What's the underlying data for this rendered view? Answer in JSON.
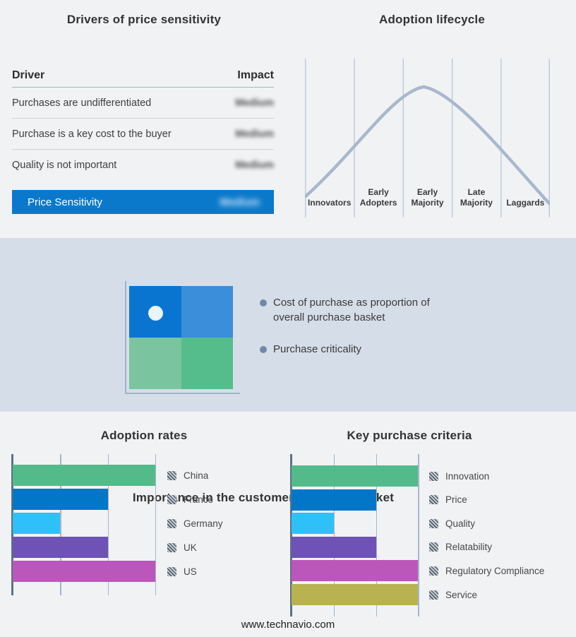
{
  "drivers_panel": {
    "title": "Drivers of price sensitivity",
    "columns": {
      "driver": "Driver",
      "impact": "Impact"
    },
    "rows": [
      {
        "driver": "Purchases are undifferentiated",
        "impact": "Medium",
        "impact_redacted": true
      },
      {
        "driver": "Purchase is a key cost to the buyer",
        "impact": "Medium",
        "impact_redacted": true
      },
      {
        "driver": "Quality is not important",
        "impact": "Medium",
        "impact_redacted": true
      }
    ],
    "highlight_row": {
      "label": "Price Sensitivity",
      "impact": "Medium",
      "impact_redacted": true,
      "background": "#0b79cb"
    }
  },
  "lifecycle_panel": {
    "title": "Adoption lifecycle",
    "stages": [
      "Innovators",
      "Early Adopters",
      "Early Majority",
      "Late Majority",
      "Laggards"
    ],
    "curve_color": "#a8b8cc",
    "gridline_color": "#b4c3d5"
  },
  "basket_panel": {
    "title": "Importance in the customer purchase basket",
    "bullets": [
      "Cost of purchase as proportion of overall purchase basket",
      "Purchase criticality"
    ],
    "background": "#d5dee8",
    "quadrant_colors": {
      "top_left": "#0a74d1",
      "top_right": "#3b8ed9",
      "bottom_left": "#7ac5a0",
      "bottom_right": "#55bd8c"
    },
    "marker": {
      "quadrant": "top_left",
      "color": "#eaf4fb"
    }
  },
  "chart_data": [
    {
      "type": "bar",
      "orientation": "horizontal",
      "title": "Adoption rates",
      "categories": [
        "China",
        "France",
        "Germany",
        "UK",
        "US"
      ],
      "values": [
        3,
        2,
        1,
        2,
        3
      ],
      "colors": [
        "#53bb8a",
        "#0277c8",
        "#30c0f8",
        "#6e52b5",
        "#bb57bb"
      ],
      "xlim": [
        0,
        3
      ],
      "grid": true,
      "legend_position": "right",
      "legend_marker": "gray-hatch"
    },
    {
      "type": "bar",
      "orientation": "horizontal",
      "title": "Key purchase criteria",
      "categories": [
        "Innovation",
        "Price",
        "Quality",
        "Relatability",
        "Regulatory Compliance",
        "Service"
      ],
      "values": [
        3,
        2,
        1,
        2,
        3,
        3
      ],
      "colors": [
        "#53bb8a",
        "#0277c8",
        "#30c0f8",
        "#6e52b5",
        "#bb57bb",
        "#b9b250"
      ],
      "xlim": [
        0,
        3
      ],
      "grid": true,
      "legend_position": "right",
      "legend_marker": "gray-hatch"
    },
    {
      "type": "line",
      "title": "Adoption lifecycle",
      "x_categories": [
        "Innovators",
        "Early Adopters",
        "Early Majority",
        "Late Majority",
        "Laggards"
      ],
      "series": [
        {
          "name": "adoption-curve",
          "approx_points_x_stage_y_norm": [
            [
              0.0,
              0.06
            ],
            [
              1.0,
              0.45
            ],
            [
              2.0,
              0.95
            ],
            [
              2.4,
              1.0
            ],
            [
              3.0,
              0.78
            ],
            [
              4.0,
              0.36
            ],
            [
              5.0,
              0.02
            ]
          ]
        }
      ],
      "ylabel": "",
      "xlabel": "",
      "grid": "vertical-only",
      "legend_position": "none"
    }
  ],
  "footer": {
    "url": "www.technavio.com"
  }
}
